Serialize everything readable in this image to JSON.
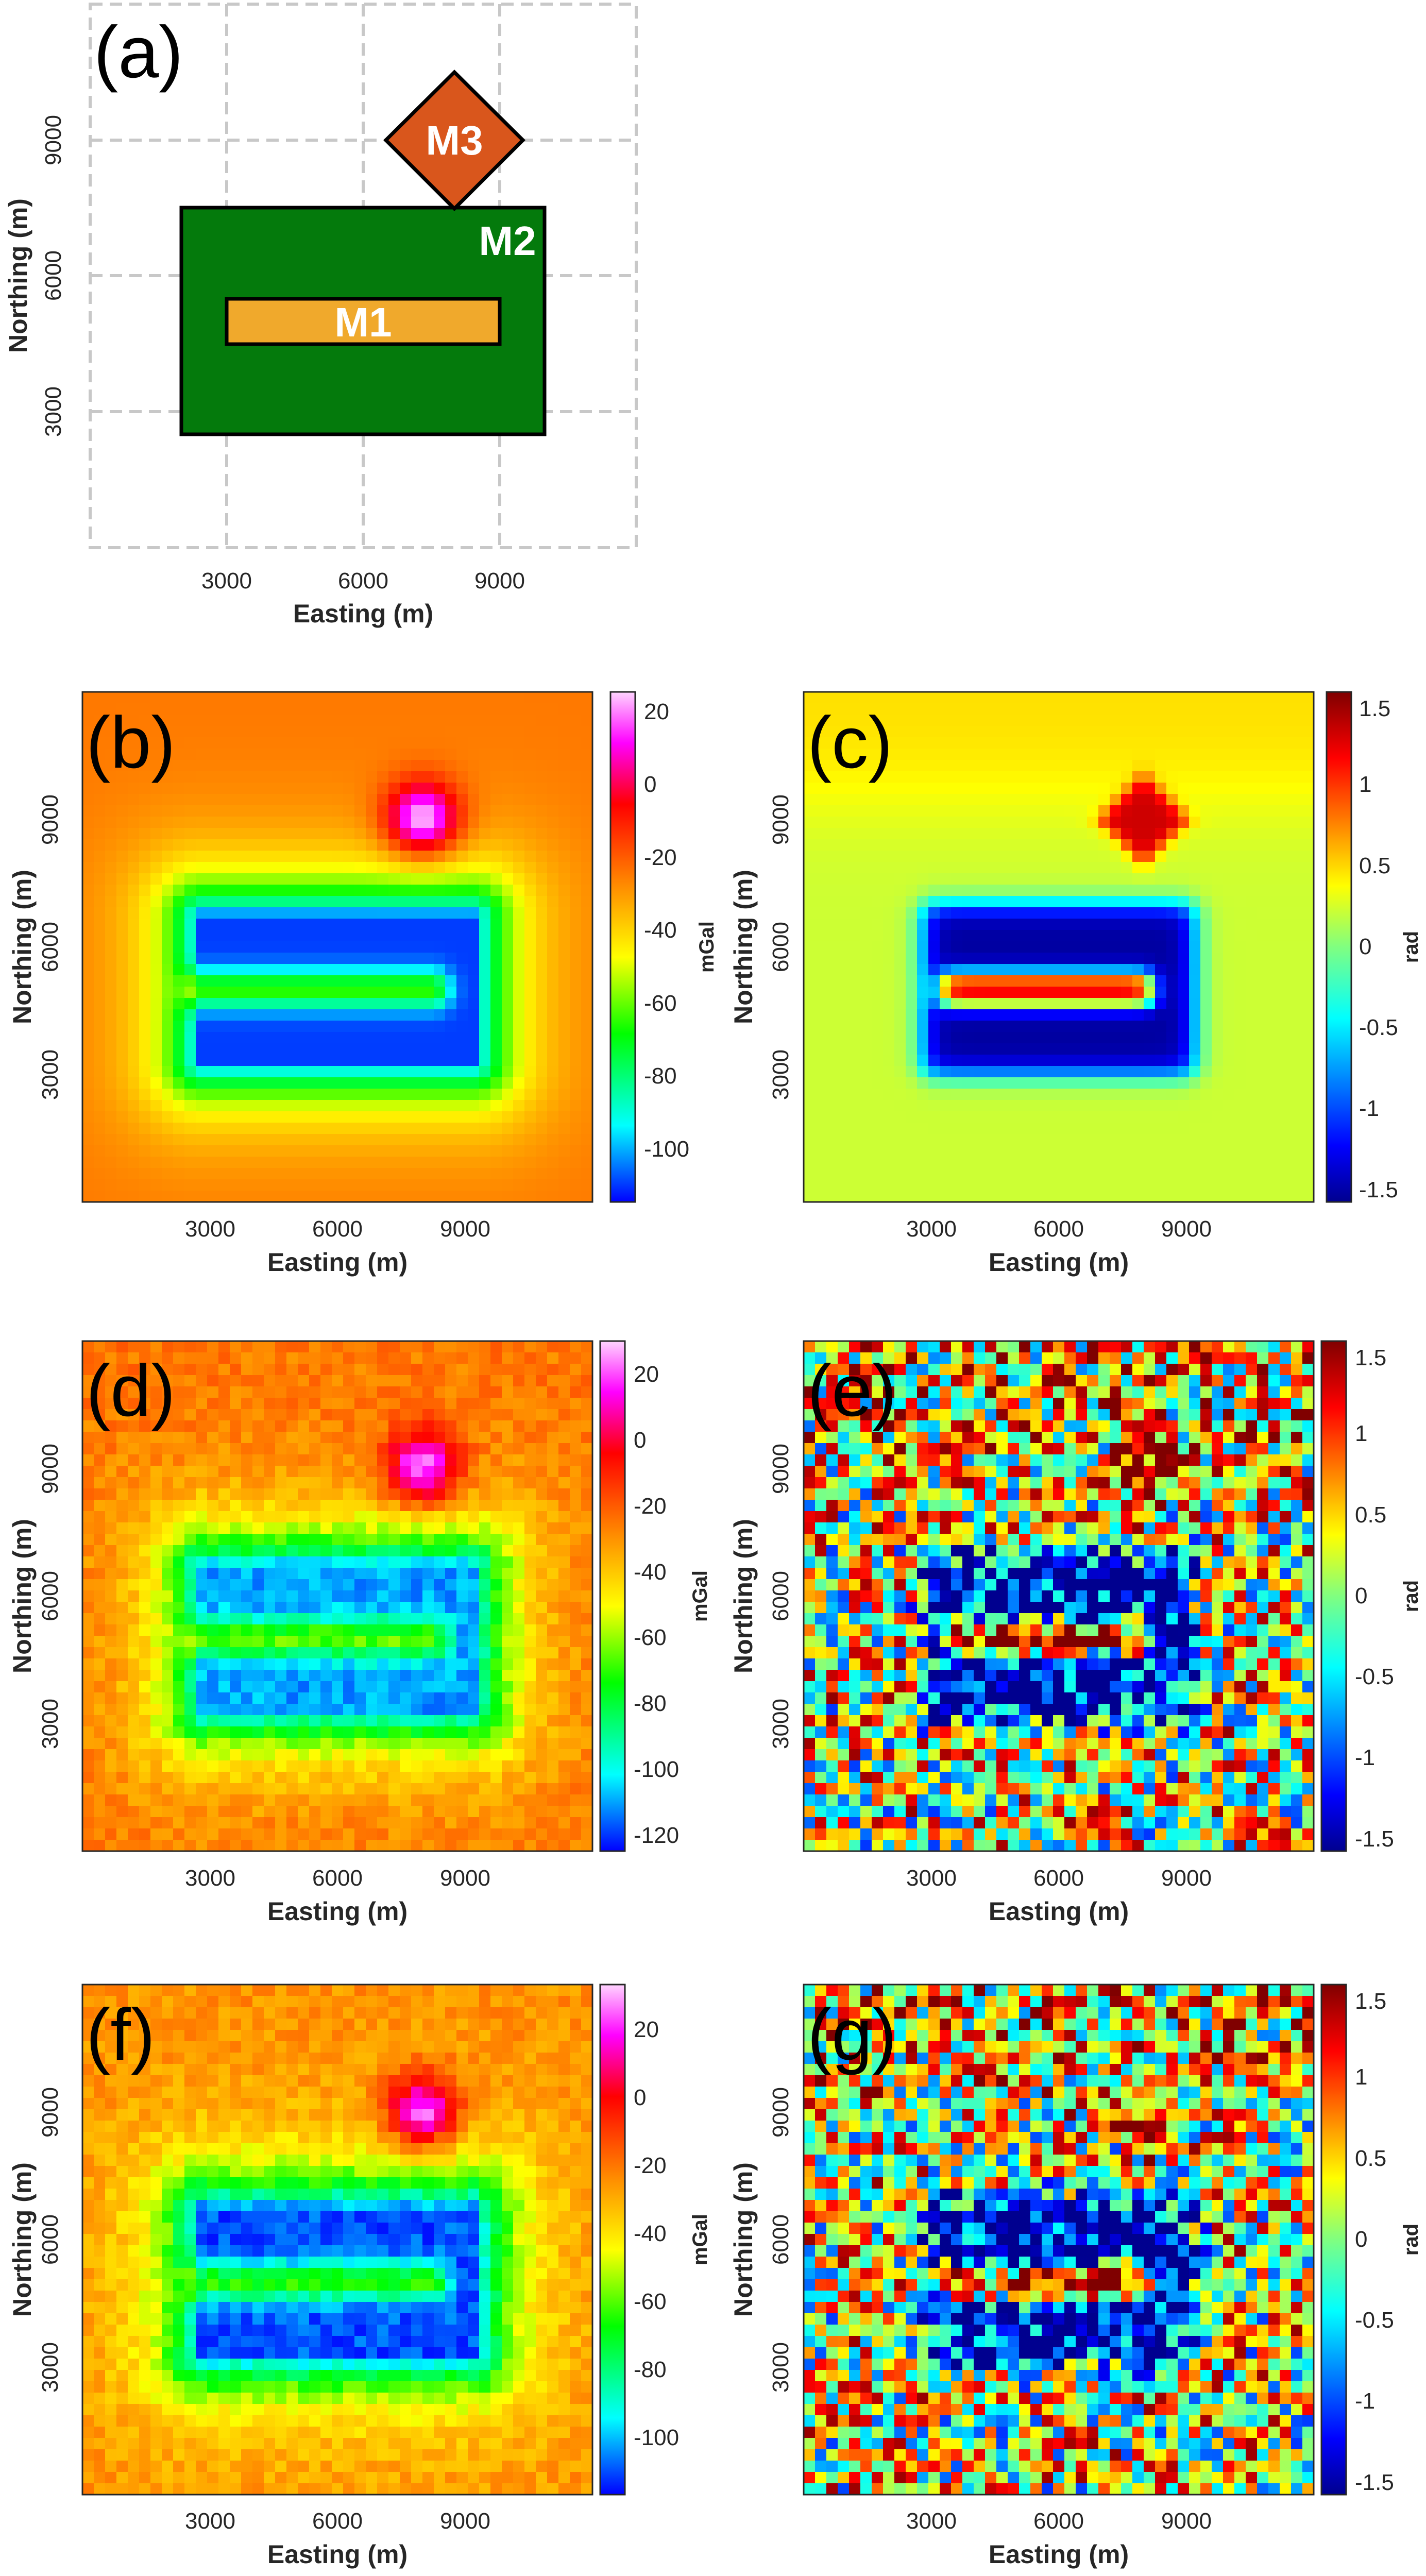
{
  "chart_data": [
    {
      "type": "diagram",
      "panel_label": "(a)",
      "xlabel": "Easting (m)",
      "ylabel": "Northing (m)",
      "xlim": [
        0,
        12000
      ],
      "ylim": [
        0,
        12000
      ],
      "xticks": [
        "3000",
        "6000",
        "9000"
      ],
      "yticks": [
        "3000",
        "6000",
        "9000"
      ],
      "grid": "dashed",
      "bodies": [
        {
          "name": "M2",
          "shape": "rectangle",
          "x_range": [
            2000,
            10000
          ],
          "y_range": [
            2500,
            7500
          ],
          "color": "#047a0c"
        },
        {
          "name": "M1",
          "shape": "rectangle",
          "x_range": [
            3000,
            9000
          ],
          "y_range": [
            4500,
            5500
          ],
          "color": "#f0a92c"
        },
        {
          "name": "M3",
          "shape": "diamond",
          "center": [
            8000,
            9000
          ],
          "half_width": 1500,
          "color": "#d9561c"
        }
      ]
    },
    {
      "type": "heatmap",
      "panel_label": "(b)",
      "field": "gravity",
      "noise": false,
      "xlabel": "Easting (m)",
      "ylabel": "Northing (m)",
      "xticks": [
        "3000",
        "6000",
        "9000"
      ],
      "yticks": [
        "3000",
        "6000",
        "9000"
      ],
      "colorbar": {
        "unit": "mGal",
        "range": [
          -115,
          25
        ],
        "ticks": [
          "20",
          "0",
          "-20",
          "-40",
          "-60",
          "-80",
          "-100"
        ],
        "tick_values": [
          20,
          0,
          -20,
          -40,
          -60,
          -80,
          -100
        ]
      }
    },
    {
      "type": "heatmap",
      "panel_label": "(c)",
      "field": "phase",
      "noise": false,
      "xlabel": "Easting (m)",
      "ylabel": "Northing (m)",
      "xticks": [
        "3000",
        "6000",
        "9000"
      ],
      "yticks": [
        "3000",
        "6000",
        "9000"
      ],
      "colorbar": {
        "unit": "rad",
        "range": [
          -1.55,
          1.6
        ],
        "ticks": [
          "1.5",
          "1",
          "0.5",
          "0",
          "-0.5",
          "-1",
          "-1.5"
        ],
        "tick_values": [
          1.5,
          1,
          0.5,
          0,
          -0.5,
          -1,
          -1.5
        ]
      }
    },
    {
      "type": "heatmap",
      "panel_label": "(d)",
      "field": "gravity",
      "noise": true,
      "xlabel": "Easting (m)",
      "ylabel": "Northing (m)",
      "xticks": [
        "3000",
        "6000",
        "9000"
      ],
      "yticks": [
        "3000",
        "6000",
        "9000"
      ],
      "colorbar": {
        "unit": "mGal",
        "range": [
          -125,
          30
        ],
        "ticks": [
          "20",
          "0",
          "-20",
          "-40",
          "-60",
          "-80",
          "-100",
          "-120"
        ],
        "tick_values": [
          20,
          0,
          -20,
          -40,
          -60,
          -80,
          -100,
          -120
        ]
      }
    },
    {
      "type": "heatmap",
      "panel_label": "(e)",
      "field": "phase",
      "noise": true,
      "xlabel": "Easting (m)",
      "ylabel": "Northing (m)",
      "xticks": [
        "3000",
        "6000",
        "9000"
      ],
      "yticks": [
        "3000",
        "6000",
        "9000"
      ],
      "colorbar": {
        "unit": "rad",
        "range": [
          -1.55,
          1.6
        ],
        "ticks": [
          "1.5",
          "1",
          "0.5",
          "0",
          "-0.5",
          "-1",
          "-1.5"
        ],
        "tick_values": [
          1.5,
          1,
          0.5,
          0,
          -0.5,
          -1,
          -1.5
        ]
      }
    },
    {
      "type": "heatmap",
      "panel_label": "(f)",
      "field": "gravity",
      "noise": true,
      "xlabel": "Easting (m)",
      "ylabel": "Northing (m)",
      "xticks": [
        "3000",
        "6000",
        "9000"
      ],
      "yticks": [
        "3000",
        "6000",
        "9000"
      ],
      "colorbar": {
        "unit": "mGal",
        "range": [
          -117,
          33
        ],
        "ticks": [
          "20",
          "0",
          "-20",
          "-40",
          "-60",
          "-80",
          "-100"
        ],
        "tick_values": [
          20,
          0,
          -20,
          -40,
          -60,
          -80,
          -100
        ]
      }
    },
    {
      "type": "heatmap",
      "panel_label": "(g)",
      "field": "phase",
      "noise": true,
      "xlabel": "Easting (m)",
      "ylabel": "Northing (m)",
      "xticks": [
        "3000",
        "6000",
        "9000"
      ],
      "yticks": [
        "3000",
        "6000",
        "9000"
      ],
      "colorbar": {
        "unit": "rad",
        "range": [
          -1.55,
          1.6
        ],
        "ticks": [
          "1.5",
          "1",
          "0.5",
          "0",
          "-0.5",
          "-1",
          "-1.5"
        ],
        "tick_values": [
          1.5,
          1,
          0.5,
          0,
          -0.5,
          -1,
          -1.5
        ]
      }
    }
  ]
}
